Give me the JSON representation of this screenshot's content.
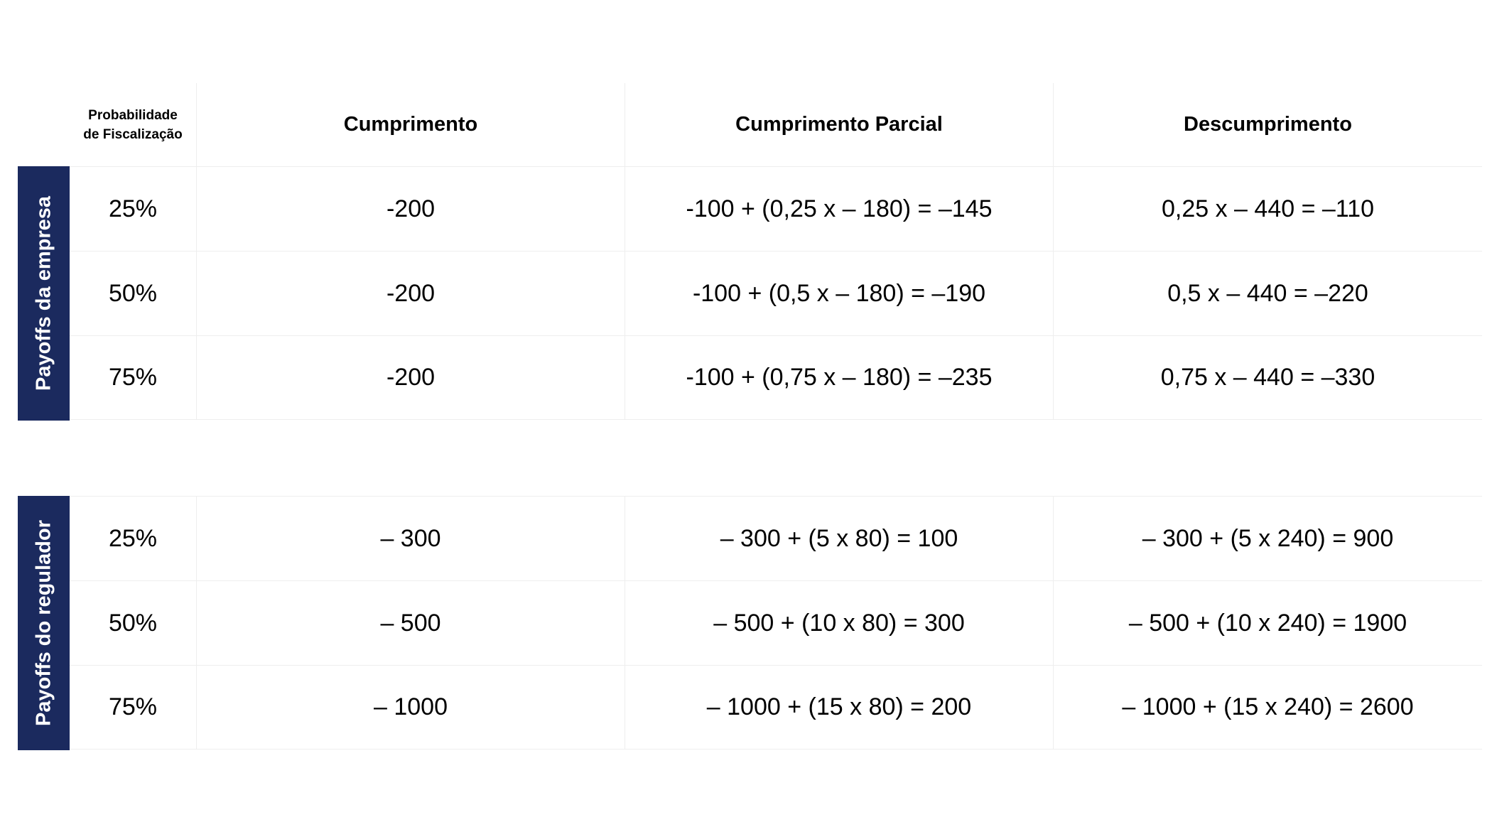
{
  "header": {
    "probability_line1": "Probabilidade",
    "probability_line2": "de Fiscalização",
    "col1": "Cumprimento",
    "col2": "Cumprimento Parcial",
    "col3": "Descumprimento"
  },
  "empresa": {
    "label": "Payoffs da empresa",
    "rows": [
      {
        "prob": "25%",
        "c1": "-200",
        "c2": "-100 + (0,25 x – 180) = –145",
        "c3": "0,25 x – 440 = –110"
      },
      {
        "prob": "50%",
        "c1": "-200",
        "c2": "-100 + (0,5 x – 180) = –190",
        "c3": "0,5 x – 440 = –220"
      },
      {
        "prob": "75%",
        "c1": "-200",
        "c2": "-100 + (0,75 x – 180) = –235",
        "c3": "0,75 x – 440 = –330"
      }
    ]
  },
  "regulador": {
    "label": "Payoffs do regulador",
    "rows": [
      {
        "prob": "25%",
        "c1": "– 300",
        "c2": "– 300 + (5 x 80) = 100",
        "c3": "– 300 + (5 x 240) = 900"
      },
      {
        "prob": "50%",
        "c1": "– 500",
        "c2": "– 500 + (10 x 80) = 300",
        "c3": "– 500 + (10 x 240) = 1900"
      },
      {
        "prob": "75%",
        "c1": "– 1000",
        "c2": "– 1000 + (15 x 80) = 200",
        "c3": "– 1000 + (15 x 240) = 2600"
      }
    ]
  },
  "colors": {
    "label_background": "#1b2a5e",
    "label_text": "#ffffff",
    "grid_line": "#eeeeee"
  }
}
